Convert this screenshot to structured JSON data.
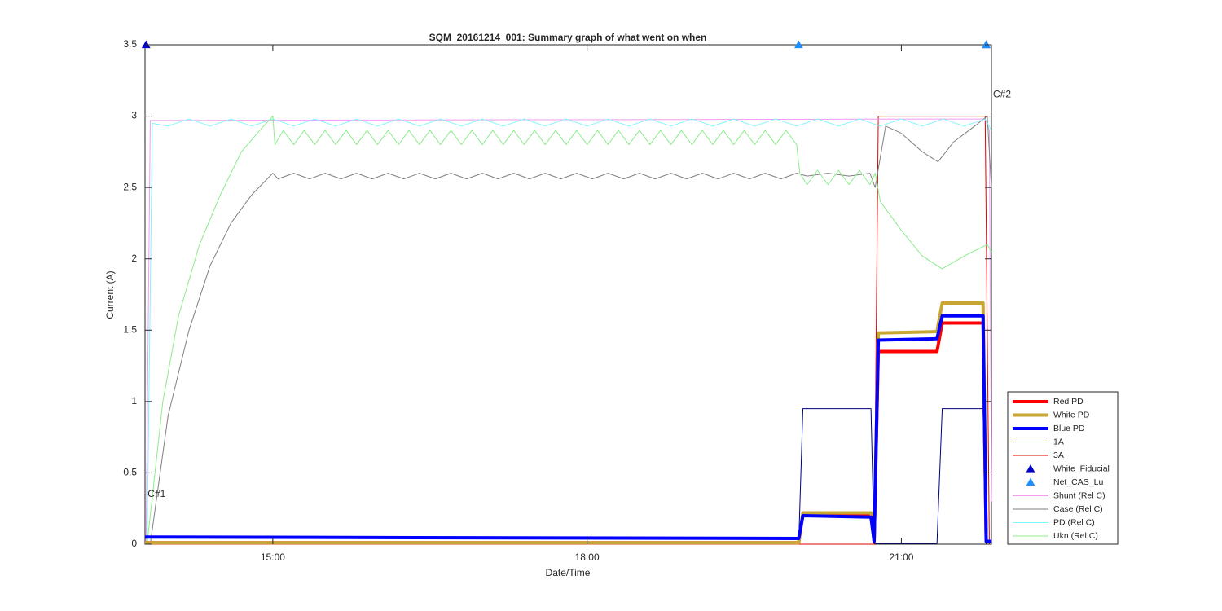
{
  "chart_data": {
    "type": "line",
    "title": "SQM_20161214_001: Summary graph of what went on when",
    "x_label": "Date/Time",
    "y_label": "Current (A)",
    "xlim": [
      13.78,
      21.86
    ],
    "ylim": [
      0,
      3.5
    ],
    "xticks": [
      {
        "value": 15,
        "label": "15:00"
      },
      {
        "value": 18,
        "label": "18:00"
      },
      {
        "value": 21,
        "label": "21:00"
      }
    ],
    "yticks": [
      0,
      0.5,
      1,
      1.5,
      2,
      2.5,
      3,
      3.5
    ],
    "legend": "lower right",
    "annotations": [
      {
        "text": "C#1",
        "x": 13.79,
        "y": 0.35
      },
      {
        "text": "C#2",
        "x": 21.86,
        "y": 3.15
      }
    ],
    "series": [
      {
        "name": "Red PD",
        "color": "#ff0000",
        "line_width": 4,
        "x": [
          13.78,
          20.02,
          20.06,
          20.71,
          20.74,
          20.78,
          21.34,
          21.39,
          21.78,
          21.81,
          21.86
        ],
        "values": [
          0.01,
          0.01,
          0.21,
          0.21,
          0.02,
          1.35,
          1.35,
          1.55,
          1.55,
          0.02,
          0.02
        ]
      },
      {
        "name": "White PD",
        "color": "#c9a633",
        "line_width": 4,
        "x": [
          13.78,
          20.02,
          20.06,
          20.71,
          20.74,
          20.78,
          21.34,
          21.39,
          21.78,
          21.81,
          21.86
        ],
        "values": [
          0.01,
          0.01,
          0.22,
          0.22,
          0.02,
          1.48,
          1.49,
          1.69,
          1.69,
          0.02,
          0.02
        ]
      },
      {
        "name": "Blue PD",
        "color": "#0000ff",
        "line_width": 4,
        "x": [
          13.78,
          20.02,
          20.06,
          20.71,
          20.74,
          20.78,
          21.34,
          21.39,
          21.78,
          21.81,
          21.86
        ],
        "values": [
          0.05,
          0.04,
          0.2,
          0.19,
          0.02,
          1.43,
          1.44,
          1.6,
          1.6,
          0.02,
          0.02
        ]
      },
      {
        "name": "1A",
        "color": "#00007f",
        "line_width": 1,
        "x": [
          13.78,
          20.02,
          20.06,
          20.71,
          20.74,
          21.34,
          21.39,
          21.78,
          21.81,
          21.86
        ],
        "values": [
          0,
          0,
          0.95,
          0.95,
          0.005,
          0.005,
          0.95,
          0.95,
          0,
          0
        ]
      },
      {
        "name": "3A",
        "color": "#e00000",
        "line_width": 1,
        "x": [
          13.78,
          20.74,
          20.78,
          21.8,
          21.84,
          21.86
        ],
        "values": [
          0,
          0,
          3.0,
          3.0,
          0,
          0
        ]
      },
      {
        "name": "White_Fiducial",
        "color": "#0000cc",
        "marker": "triangle",
        "x": [
          13.79,
          21.81
        ],
        "values": [
          3.5,
          3.5
        ]
      },
      {
        "name": "Net_CAS_Lu",
        "color": "#1e8fff",
        "marker": "triangle",
        "x": [
          20.02,
          21.81
        ],
        "values": [
          3.5,
          3.5
        ]
      },
      {
        "name": "Shunt (Rel C)",
        "color": "#f19cf1",
        "line_width": 1,
        "x": [
          13.79,
          13.83,
          21.8,
          21.84,
          21.86
        ],
        "values": [
          0,
          2.97,
          2.98,
          2.9,
          0.3
        ]
      },
      {
        "name": "Case (Rel C)",
        "color": "#808080",
        "line_width": 1,
        "x": [
          13.83,
          14.0,
          14.2,
          14.4,
          14.6,
          14.8,
          15.0,
          15.05,
          15.2,
          15.35,
          15.5,
          15.65,
          15.8,
          15.95,
          16.1,
          16.25,
          16.4,
          16.55,
          16.7,
          16.85,
          17.0,
          17.15,
          17.3,
          17.45,
          17.6,
          17.75,
          17.9,
          18.05,
          18.2,
          18.35,
          18.5,
          18.65,
          18.8,
          18.95,
          19.1,
          19.25,
          19.4,
          19.55,
          19.7,
          19.85,
          20.0,
          20.1,
          20.3,
          20.5,
          20.7,
          20.75,
          20.85,
          21.0,
          21.2,
          21.35,
          21.5,
          21.7,
          21.82,
          21.86
        ],
        "values": [
          0,
          0.9,
          1.5,
          1.95,
          2.25,
          2.45,
          2.6,
          2.56,
          2.6,
          2.56,
          2.6,
          2.56,
          2.6,
          2.56,
          2.6,
          2.56,
          2.6,
          2.56,
          2.6,
          2.56,
          2.6,
          2.56,
          2.6,
          2.56,
          2.6,
          2.56,
          2.6,
          2.56,
          2.6,
          2.56,
          2.6,
          2.56,
          2.6,
          2.56,
          2.6,
          2.56,
          2.6,
          2.56,
          2.6,
          2.56,
          2.6,
          2.58,
          2.6,
          2.58,
          2.6,
          2.5,
          2.93,
          2.88,
          2.75,
          2.68,
          2.82,
          2.93,
          3.0,
          2.5
        ]
      },
      {
        "name": "PD (Rel C)",
        "color": "#7ff5ff",
        "line_width": 1,
        "x": [
          13.8,
          13.85,
          14.0,
          14.2,
          14.4,
          14.6,
          14.8,
          15.0,
          15.2,
          15.4,
          15.6,
          15.8,
          16.0,
          16.2,
          16.4,
          16.6,
          16.8,
          17.0,
          17.2,
          17.4,
          17.6,
          17.8,
          18.0,
          18.2,
          18.4,
          18.6,
          18.8,
          19.0,
          19.2,
          19.4,
          19.6,
          19.8,
          20.0,
          20.2,
          20.4,
          20.6,
          20.8,
          21.0,
          21.2,
          21.4,
          21.6,
          21.8,
          21.86
        ],
        "values": [
          0,
          2.95,
          2.93,
          2.98,
          2.93,
          2.98,
          2.93,
          2.98,
          2.93,
          2.98,
          2.93,
          2.98,
          2.93,
          2.98,
          2.93,
          2.98,
          2.93,
          2.98,
          2.93,
          2.98,
          2.93,
          2.98,
          2.93,
          2.98,
          2.93,
          2.98,
          2.93,
          2.98,
          2.93,
          2.98,
          2.93,
          2.98,
          2.93,
          2.98,
          2.93,
          2.98,
          2.93,
          2.98,
          2.93,
          2.98,
          2.93,
          2.98,
          2.9
        ]
      },
      {
        "name": "Ukn (Rel C)",
        "color": "#8cec8c",
        "line_width": 1,
        "x": [
          13.8,
          13.95,
          14.1,
          14.3,
          14.5,
          14.7,
          14.9,
          15.0,
          15.02,
          15.1,
          15.2,
          15.3,
          15.4,
          15.5,
          15.6,
          15.7,
          15.8,
          15.9,
          16.0,
          16.1,
          16.2,
          16.3,
          16.4,
          16.5,
          16.6,
          16.7,
          16.8,
          16.9,
          17.0,
          17.1,
          17.2,
          17.3,
          17.4,
          17.5,
          17.6,
          17.7,
          17.8,
          17.9,
          18.0,
          18.1,
          18.2,
          18.3,
          18.4,
          18.5,
          18.6,
          18.7,
          18.8,
          18.9,
          19.0,
          19.1,
          19.2,
          19.3,
          19.4,
          19.5,
          19.6,
          19.7,
          19.8,
          19.9,
          20.0,
          20.03,
          20.1,
          20.2,
          20.3,
          20.4,
          20.5,
          20.6,
          20.7,
          20.75,
          20.8,
          21.0,
          21.2,
          21.39,
          21.6,
          21.82,
          21.86
        ],
        "values": [
          0,
          1.0,
          1.6,
          2.1,
          2.45,
          2.75,
          2.92,
          3.0,
          2.8,
          2.9,
          2.8,
          2.9,
          2.8,
          2.9,
          2.8,
          2.9,
          2.8,
          2.9,
          2.8,
          2.9,
          2.8,
          2.9,
          2.8,
          2.9,
          2.8,
          2.9,
          2.8,
          2.9,
          2.8,
          2.9,
          2.8,
          2.9,
          2.8,
          2.9,
          2.8,
          2.9,
          2.8,
          2.9,
          2.8,
          2.9,
          2.8,
          2.9,
          2.8,
          2.9,
          2.8,
          2.9,
          2.8,
          2.9,
          2.8,
          2.9,
          2.8,
          2.9,
          2.8,
          2.9,
          2.8,
          2.9,
          2.8,
          2.9,
          2.8,
          2.6,
          2.52,
          2.62,
          2.52,
          2.62,
          2.52,
          2.62,
          2.52,
          2.6,
          2.4,
          2.2,
          2.02,
          1.93,
          2.02,
          2.1,
          2.05
        ]
      }
    ]
  }
}
